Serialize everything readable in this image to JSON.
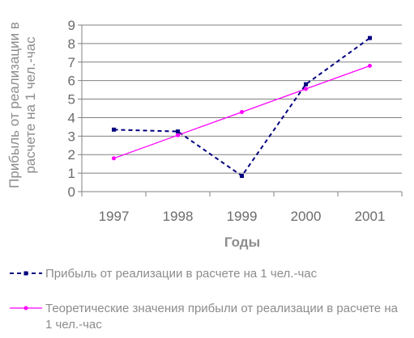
{
  "chart_data": {
    "type": "line",
    "xlabel": "Годы",
    "ylabel": "Прибыль от реализации в расчете на 1 чел.-час",
    "categories": [
      "1997",
      "1998",
      "1999",
      "2000",
      "2001"
    ],
    "ylim": [
      0,
      9
    ],
    "yticks": [
      "0",
      "1",
      "2",
      "3",
      "4",
      "5",
      "6",
      "7",
      "8",
      "9"
    ],
    "grid": true,
    "legend_position": "bottom",
    "series": [
      {
        "name": "Прибыль от реализации в расчете на 1 чел.-час",
        "values": [
          3.35,
          3.25,
          0.85,
          5.8,
          8.3
        ],
        "color": "#000080",
        "style": "dashed"
      },
      {
        "name": "Теоретические значения прибыли от реализации в расчете на 1 чел.-час",
        "values": [
          1.8,
          3.05,
          4.3,
          5.55,
          6.8
        ],
        "color": "#ff00ff",
        "style": "solid"
      }
    ],
    "legend_lines": [
      [
        "Прибыль от реализации в расчете на 1 чел.-час"
      ],
      [
        "Теоретические значения прибыли от реализации в расчете на",
        "1 чел.-час"
      ]
    ]
  }
}
